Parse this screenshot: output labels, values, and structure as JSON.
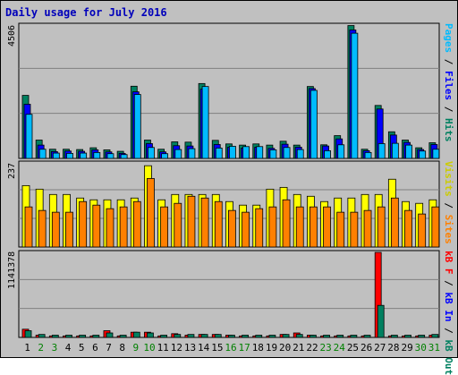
{
  "title": "Daily usage for July 2016",
  "colors": {
    "frame_bg": "#c0c0c0",
    "panel_bg": "#c0c0c0",
    "pages": "#00bbff",
    "files": "#0000ff",
    "hits": "#008060",
    "visits": "#ffff00",
    "sites": "#ff8000",
    "kb_in": "#008080",
    "kb_out": "#008060",
    "kb_f": "#ff0000",
    "weekend_label": "#008000",
    "weekday_label": "#000000"
  },
  "legend": {
    "top": [
      {
        "text": "Pages",
        "color": "#00bbff"
      },
      {
        "text": " / ",
        "color": "#000000"
      },
      {
        "text": "Files",
        "color": "#0000ff"
      },
      {
        "text": " / ",
        "color": "#000000"
      },
      {
        "text": "Hits",
        "color": "#008060"
      }
    ],
    "mid": [
      {
        "text": "Visits",
        "color": "#cccc00"
      },
      {
        "text": " / ",
        "color": "#000000"
      },
      {
        "text": "Sites",
        "color": "#ff8000"
      }
    ],
    "bot": [
      {
        "text": "kB F",
        "color": "#ff0000"
      },
      {
        "text": " / ",
        "color": "#000000"
      },
      {
        "text": "kB In",
        "color": "#0000ff"
      },
      {
        "text": " / ",
        "color": "#000000"
      },
      {
        "text": "kB Out",
        "color": "#008060"
      }
    ]
  },
  "chart_data": [
    {
      "type": "bar",
      "title": "Daily usage for July 2016",
      "ymax_label": "4506",
      "ylim": [
        0,
        4506
      ],
      "categories": [
        "1",
        "2",
        "3",
        "4",
        "5",
        "6",
        "7",
        "8",
        "9",
        "10",
        "11",
        "12",
        "13",
        "14",
        "15",
        "16",
        "17",
        "18",
        "19",
        "20",
        "21",
        "22",
        "23",
        "24",
        "25",
        "26",
        "27",
        "28",
        "29",
        "30",
        "31"
      ],
      "weekend_days": [
        "2",
        "3",
        "9",
        "10",
        "16",
        "17",
        "23",
        "24",
        "30",
        "31"
      ],
      "series": [
        {
          "name": "Hits",
          "values": [
            2130,
            620,
            310,
            310,
            300,
            360,
            290,
            240,
            2440,
            620,
            310,
            560,
            550,
            2530,
            610,
            490,
            450,
            490,
            450,
            580,
            450,
            2430,
            460,
            770,
            4490,
            310,
            1790,
            900,
            620,
            360,
            530
          ]
        },
        {
          "name": "Files",
          "values": [
            1830,
            450,
            230,
            250,
            240,
            290,
            220,
            170,
            2250,
            500,
            220,
            430,
            420,
            2340,
            470,
            380,
            350,
            380,
            340,
            480,
            380,
            2360,
            420,
            660,
            4340,
            260,
            1670,
            790,
            540,
            300,
            470
          ]
        },
        {
          "name": "Pages",
          "values": [
            1490,
            310,
            180,
            170,
            180,
            200,
            160,
            130,
            2160,
            370,
            160,
            300,
            330,
            2430,
            350,
            410,
            400,
            400,
            290,
            370,
            300,
            2300,
            260,
            460,
            4230,
            200,
            500,
            510,
            450,
            250,
            310
          ]
        }
      ]
    },
    {
      "type": "bar",
      "ymax_label": "237",
      "ylim": [
        0,
        237
      ],
      "categories": [
        "1",
        "2",
        "3",
        "4",
        "5",
        "6",
        "7",
        "8",
        "9",
        "10",
        "11",
        "12",
        "13",
        "14",
        "15",
        "16",
        "17",
        "18",
        "19",
        "20",
        "21",
        "22",
        "23",
        "24",
        "25",
        "26",
        "27",
        "28",
        "29",
        "30",
        "31"
      ],
      "series": [
        {
          "name": "Visits",
          "values": [
            173,
            163,
            148,
            148,
            138,
            133,
            133,
            133,
            138,
            229,
            133,
            148,
            148,
            148,
            148,
            128,
            118,
            118,
            163,
            168,
            148,
            143,
            128,
            138,
            138,
            148,
            148,
            191,
            128,
            123,
            133
          ]
        },
        {
          "name": "Sites",
          "values": [
            113,
            103,
            98,
            98,
            128,
            118,
            108,
            113,
            128,
            193,
            113,
            123,
            143,
            138,
            128,
            103,
            98,
            108,
            113,
            133,
            113,
            113,
            113,
            98,
            98,
            103,
            113,
            138,
            103,
            93,
            113
          ]
        }
      ]
    },
    {
      "type": "bar",
      "ymax_label": "1141378",
      "ylim": [
        0,
        1141378
      ],
      "categories": [
        "1",
        "2",
        "3",
        "4",
        "5",
        "6",
        "7",
        "8",
        "9",
        "10",
        "11",
        "12",
        "13",
        "14",
        "15",
        "16",
        "17",
        "18",
        "19",
        "20",
        "21",
        "22",
        "23",
        "24",
        "25",
        "26",
        "27",
        "28",
        "29",
        "30",
        "31"
      ],
      "series": [
        {
          "name": "kB F",
          "values": [
            110000,
            30000,
            20000,
            20000,
            20000,
            20000,
            90000,
            20000,
            70000,
            70000,
            20000,
            50000,
            30000,
            40000,
            40000,
            30000,
            20000,
            20000,
            20000,
            40000,
            60000,
            30000,
            20000,
            20000,
            20000,
            20000,
            1141378,
            20000,
            20000,
            20000,
            30000
          ]
        },
        {
          "name": "kB Out",
          "values": [
            90000,
            40000,
            30000,
            30000,
            30000,
            30000,
            60000,
            30000,
            70000,
            60000,
            30000,
            40000,
            40000,
            40000,
            40000,
            30000,
            30000,
            30000,
            30000,
            40000,
            40000,
            30000,
            30000,
            30000,
            30000,
            30000,
            430000,
            30000,
            30000,
            30000,
            40000
          ]
        }
      ]
    }
  ]
}
